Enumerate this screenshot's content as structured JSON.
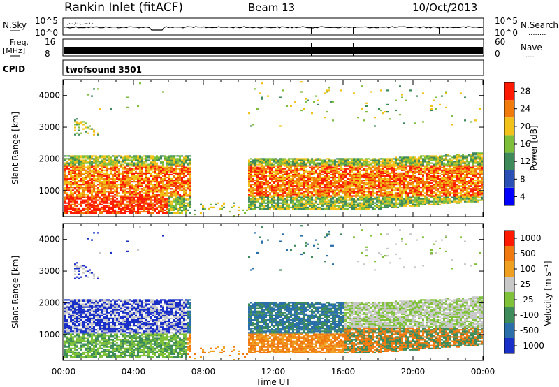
{
  "header": {
    "station": "Rankin Inlet (fitACF)",
    "beam": "Beam 13",
    "date": "10/Oct/2013"
  },
  "nsky_panel": {
    "left_label": "N.Sky",
    "right_label": "N.Search",
    "right_dots": "........",
    "ticks_left": [
      "10^5",
      "10^0"
    ],
    "ticks_right": [
      "10^5",
      "10^0"
    ]
  },
  "freq_panel": {
    "left_label_top": "Freq.",
    "left_label_unit": "[MHz]",
    "right_label": "Nave",
    "right_dots": "....",
    "ticks_left": [
      "16",
      "8"
    ],
    "ticks_right": [
      "60",
      "0"
    ]
  },
  "cpid_panel": {
    "label": "CPID",
    "value": "twofsound 3501"
  },
  "power_colorbar": {
    "label": "Power [dB]",
    "ticks": [
      "4",
      "8",
      "12",
      "16",
      "20",
      "24",
      "28"
    ],
    "colors": [
      "#0000ff",
      "#2a4fb5",
      "#3f8a5a",
      "#7dbf3a",
      "#f2c21a",
      "#f07a0a",
      "#ff1a00"
    ]
  },
  "velocity_colorbar": {
    "label": "Velocity [m s⁻¹]",
    "ticks": [
      "1000",
      "500",
      "100",
      "25",
      "-25",
      "-100",
      "-500",
      "-1000"
    ],
    "colors": [
      "#1a2fc8",
      "#2a6faa",
      "#3e8c5a",
      "#7fc23a",
      "#c8c8c8",
      "#f0a020",
      "#f07a10",
      "#ff1a00"
    ]
  },
  "chart_data": [
    {
      "type": "heatmap",
      "title": "Power",
      "ylabel": "Slant Range [km]",
      "xlabel": "",
      "y_ticks": [
        "1000",
        "2000",
        "3000",
        "4000"
      ],
      "ylim": [
        180,
        4500
      ],
      "xlim": [
        0,
        24
      ],
      "x_ticks": [
        "00:00",
        "04:00",
        "08:00",
        "12:00",
        "16:00",
        "20:00",
        "00:00"
      ],
      "colorbar": "Power [dB]"
    },
    {
      "type": "heatmap",
      "title": "Velocity",
      "ylabel": "Slant Range [km]",
      "xlabel": "Time UT",
      "y_ticks": [
        "1000",
        "2000",
        "3000",
        "4000"
      ],
      "ylim": [
        180,
        4500
      ],
      "xlim": [
        0,
        24
      ],
      "x_ticks": [
        "00:00",
        "04:00",
        "08:00",
        "12:00",
        "16:00",
        "20:00",
        "00:00"
      ],
      "colorbar": "Velocity [m s⁻¹]"
    }
  ]
}
